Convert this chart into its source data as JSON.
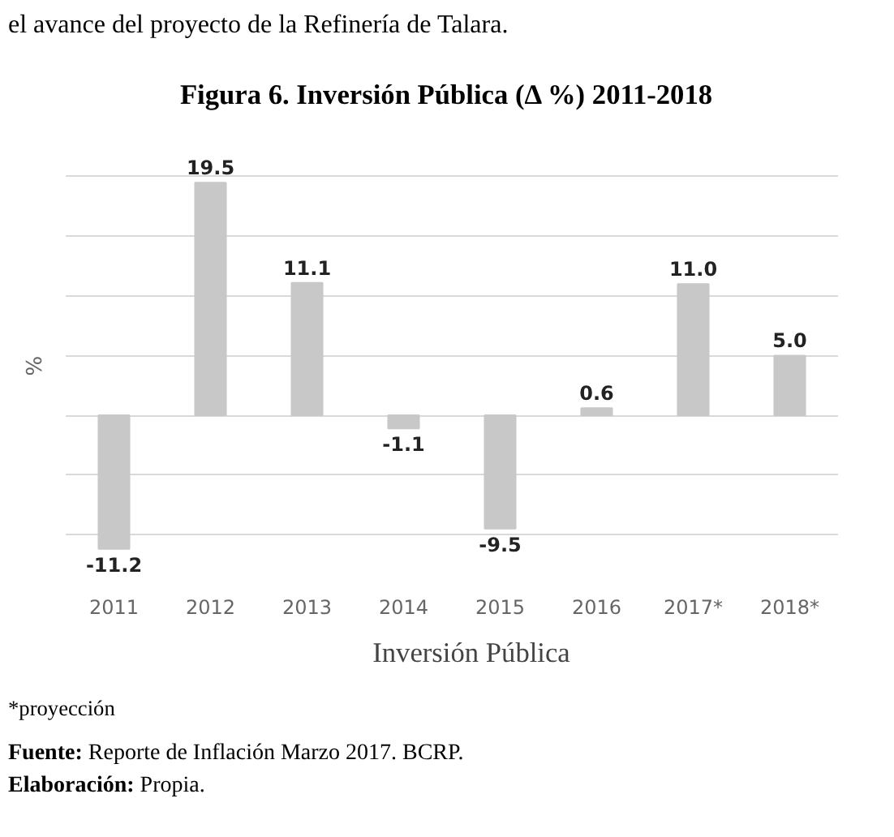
{
  "chart_data": {
    "type": "bar",
    "title": "Figura 6. Inversión Pública (Δ %) 2011-2018",
    "ylabel": "%",
    "categories": [
      "2011",
      "2012",
      "2013",
      "2014",
      "2015",
      "2016",
      "2017*",
      "2018*"
    ],
    "series": [
      {
        "name": "Inversión Pública",
        "color": "#c8c8c8",
        "values": [
          -11.2,
          19.5,
          11.1,
          -1.1,
          -9.5,
          0.6,
          11.0,
          5.0
        ],
        "value_labels": [
          "-11.2",
          "19.5",
          "11.1",
          "-1.1",
          "-9.5",
          "0.6",
          "11.0",
          "5.0"
        ]
      }
    ],
    "tick_labels": "x",
    "grid": "y",
    "legend": "bottom",
    "annotations": [
      "el avance del proyecto de la Refinería de Talara.",
      "*proyección",
      "Fuente: Reporte de Inflación Marzo 2017. BCRP.",
      "Elaboración: Propia."
    ]
  }
}
